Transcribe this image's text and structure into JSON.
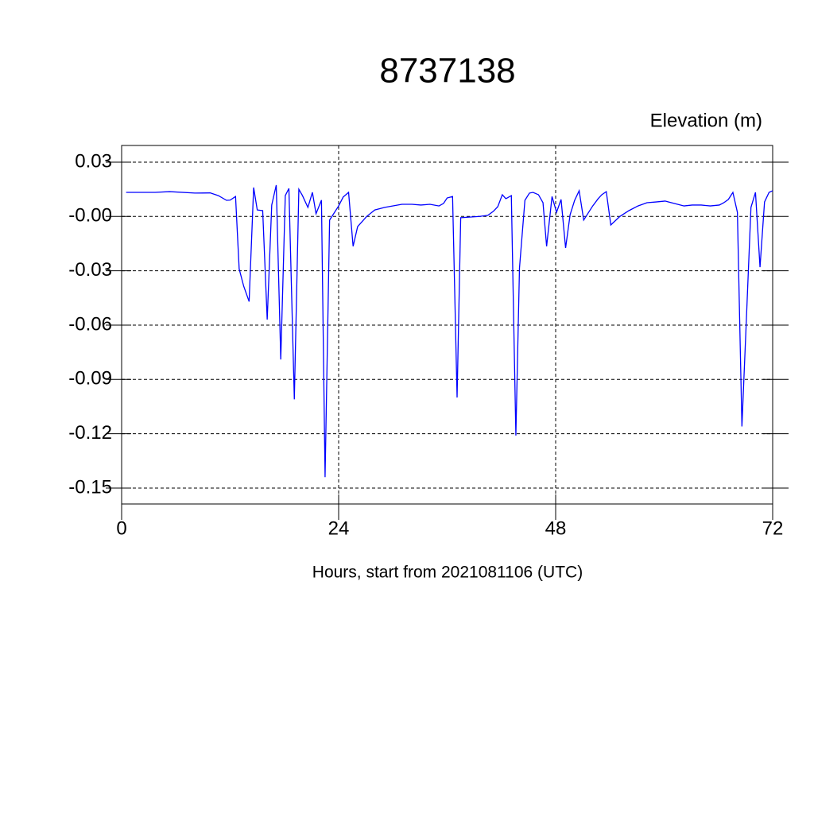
{
  "chart_data": {
    "type": "line",
    "title": "8737138",
    "subtitle": "Elevation (m)",
    "x_label": "Hours, start from 2021081106 (UTC)",
    "xlim": [
      0,
      72
    ],
    "xticks": [
      0,
      24,
      48,
      72
    ],
    "ylim": [
      -0.1588,
      0.0392
    ],
    "yticks": [
      0.03,
      {
        "value": 0,
        "label": "-0.00"
      },
      -0.03,
      -0.06,
      -0.09,
      -0.12,
      -0.15
    ],
    "grid": true,
    "series": [
      {
        "color": "#0000ff",
        "x": [
          0.5,
          3.7,
          5.3,
          8.1,
          9.8,
          10.7,
          11.6,
          12.0,
          12.6,
          13.0,
          13.5,
          14.1,
          14.6,
          15.0,
          15.6,
          16.1,
          16.6,
          17.1,
          17.6,
          18.1,
          18.5,
          19.1,
          19.6,
          20.0,
          20.6,
          21.1,
          21.5,
          22.1,
          22.5,
          23.0,
          24.0,
          24.5,
          25.1,
          25.6,
          26.1,
          27.1,
          28.0,
          29.1,
          31.0,
          32.1,
          33.1,
          34.1,
          35.1,
          35.6,
          36.0,
          36.6,
          37.1,
          37.5,
          39.6,
          40.5,
          41.1,
          41.6,
          42.1,
          42.5,
          43.1,
          43.6,
          44.0,
          44.6,
          45.1,
          45.5,
          46.1,
          46.6,
          47.0,
          47.6,
          48.1,
          48.6,
          49.1,
          49.6,
          50.1,
          50.6,
          51.1,
          51.6,
          52.1,
          52.7,
          53.1,
          53.6,
          54.1,
          55.1,
          56.1,
          57.1,
          58.1,
          59.1,
          60.1,
          61.1,
          62.2,
          63.1,
          64.1,
          65.1,
          66.1,
          66.6,
          67.1,
          67.6,
          68.1,
          68.6,
          69.1,
          69.6,
          70.1,
          70.6,
          71.1,
          71.6,
          72.0
        ],
        "values": [
          0.0133,
          0.0133,
          0.0137,
          0.0129,
          0.013,
          0.0115,
          0.0089,
          0.009,
          0.011,
          -0.029,
          -0.0385,
          -0.047,
          0.016,
          0.0036,
          0.0032,
          -0.057,
          0.0063,
          0.0173,
          -0.079,
          0.0115,
          0.0155,
          -0.101,
          0.015,
          0.0115,
          0.005,
          0.0133,
          0.0015,
          0.009,
          -0.144,
          -0.002,
          0.0058,
          0.0107,
          0.0133,
          -0.0165,
          -0.0056,
          0,
          0.0036,
          0.005,
          0.0067,
          0.0067,
          0.0063,
          0.0067,
          0.0058,
          0.0072,
          0.0102,
          0.011,
          -0.1,
          -0.0007,
          0,
          0.0006,
          0.0028,
          0.0054,
          0.012,
          0.0098,
          0.0115,
          -0.121,
          -0.0285,
          0.0089,
          0.0129,
          0.0133,
          0.012,
          0.0076,
          -0.0165,
          0.011,
          0.0023,
          0.0094,
          -0.0174,
          0.001,
          0.0089,
          0.0142,
          -0.002,
          0.0019,
          0.0058,
          0.0098,
          0.012,
          0.0137,
          -0.0047,
          0,
          0.0032,
          0.0058,
          0.0076,
          0.008,
          0.0085,
          0.0072,
          0.0058,
          0.0063,
          0.0063,
          0.0058,
          0.0063,
          0.0076,
          0.0094,
          0.0133,
          0.0023,
          -0.116,
          -0.056,
          0.005,
          0.0133,
          -0.028,
          0.008,
          0.0133,
          0.0142
        ]
      }
    ]
  }
}
